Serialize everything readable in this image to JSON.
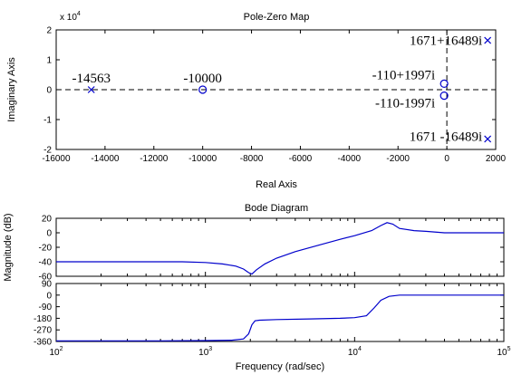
{
  "chart_data": [
    {
      "type": "scatter",
      "title": "Pole-Zero Map",
      "xlabel": "Real Axis",
      "ylabel": "Imaginary Axis",
      "xlim": [
        -16000,
        2000
      ],
      "ylim": [
        -20000,
        20000
      ],
      "y_exponent_label": "x 10",
      "y_exponent_power": "4",
      "x_ticks": [
        -16000,
        -14000,
        -12000,
        -10000,
        -8000,
        -6000,
        -4000,
        -2000,
        0,
        2000
      ],
      "y_ticks": [
        2,
        1,
        0,
        -1,
        -2
      ],
      "x_tick_labels": [
        "-16000",
        "-14000",
        "-12000",
        "-10000",
        "-8000",
        "-6000",
        "-4000",
        "-2000",
        "0",
        "2000"
      ],
      "y_tick_labels": [
        "2",
        "1",
        "0",
        "-1",
        "-2"
      ],
      "poles": [
        {
          "x": -14563,
          "y": 0
        },
        {
          "x": 1671,
          "y": 16489
        },
        {
          "x": 1671,
          "y": -16489
        }
      ],
      "zeros": [
        {
          "x": -10000,
          "y": 0
        },
        {
          "x": -110,
          "y": 1997
        },
        {
          "x": -110,
          "y": -1997
        }
      ],
      "annotations": [
        {
          "text": "-14563",
          "x": -14563,
          "y": 0
        },
        {
          "text": "-10000",
          "x": -10000,
          "y": 0
        },
        {
          "text": "1671+16489i",
          "x": 1671,
          "y": 16489
        },
        {
          "text": "-110+1997i",
          "x": -110,
          "y": 1997
        },
        {
          "text": "-110-1997i",
          "x": -110,
          "y": -1997
        },
        {
          "text": "1671 -16489i",
          "x": 1671,
          "y": -16489
        }
      ]
    },
    {
      "type": "line",
      "title": "Bode Diagram",
      "xlabel": "Frequency  (rad/sec)",
      "xscale": "log",
      "xlim": [
        100,
        100000
      ],
      "x_tick_values": [
        100,
        1000,
        10000,
        100000
      ],
      "x_tick_bases": [
        "10",
        "10",
        "10",
        "10"
      ],
      "x_tick_powers": [
        "2",
        "3",
        "4",
        "5"
      ],
      "magnitude": {
        "ylabel": "Magnitude (dB)",
        "ylim": [
          -60,
          20
        ],
        "y_ticks": [
          20,
          0,
          -20,
          -40,
          -60
        ],
        "y_tick_labels": [
          "20",
          "0",
          "-20",
          "-40",
          "-60"
        ],
        "x": [
          100,
          300,
          500,
          700,
          1000,
          1300,
          1600,
          1800,
          1950,
          2050,
          2200,
          2500,
          3000,
          4000,
          6000,
          8000,
          10000,
          13000,
          15000,
          16500,
          18000,
          20000,
          25000,
          30000,
          40000,
          100000
        ],
        "values": [
          -40,
          -40,
          -40,
          -40,
          -41,
          -43,
          -46,
          -50,
          -55,
          -57,
          -51,
          -43,
          -35,
          -26,
          -16,
          -9,
          -4,
          3,
          10,
          14,
          12,
          6,
          3,
          2,
          0,
          0
        ]
      },
      "phase": {
        "ylim": [
          -360,
          90
        ],
        "y_ticks": [
          90,
          0,
          -90,
          -180,
          -270,
          -360
        ],
        "y_tick_labels": [
          "90",
          "0",
          "-90",
          "-180",
          "-270",
          "-360"
        ],
        "x": [
          100,
          500,
          1000,
          1500,
          1800,
          1950,
          2050,
          2150,
          2300,
          3000,
          5000,
          8000,
          10000,
          12000,
          13500,
          15000,
          17000,
          20000,
          30000,
          40000,
          100000
        ],
        "values": [
          -355,
          -355,
          -353,
          -350,
          -340,
          -300,
          -230,
          -200,
          -195,
          -190,
          -185,
          -180,
          -175,
          -160,
          -100,
          -40,
          -10,
          0,
          0,
          0,
          0
        ]
      }
    }
  ]
}
